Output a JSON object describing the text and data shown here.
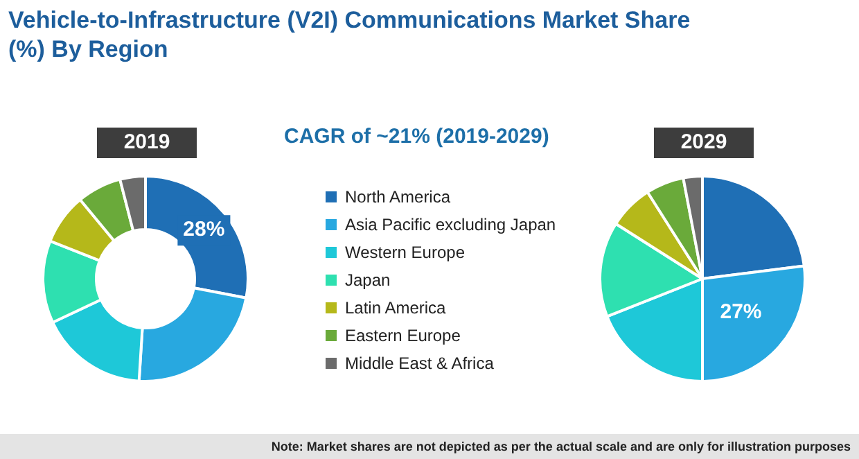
{
  "chart_data": {
    "type": "donut",
    "title": "Vehicle-to-Infrastructure (V2I) Communications Market Share (%) By Region",
    "subtitle": "CAGR of ~21% (2019-2029)",
    "annotations": [
      "Note: Market shares are not depicted as per the actual scale and are only for illustration purposes"
    ],
    "legend": "right",
    "categories": [
      "North America",
      "Asia Pacific excluding Japan",
      "Western Europe",
      "Japan",
      "Latin America",
      "Eastern Europe",
      "Middle East & Africa"
    ],
    "colors": [
      "#1f6fb5",
      "#28a8e0",
      "#1ec8d8",
      "#2ee0b0",
      "#b5b81a",
      "#6aaa3a",
      "#6b6b6b"
    ],
    "series": [
      {
        "name": "2019",
        "values": [
          28,
          23,
          17,
          13,
          8,
          7,
          4
        ],
        "value_labels": [
          "28%",
          null,
          null,
          null,
          null,
          null,
          null
        ]
      },
      {
        "name": "2029",
        "type": "pie",
        "values": [
          23,
          27,
          19,
          15,
          7,
          6,
          3
        ],
        "value_labels": [
          null,
          "27%",
          null,
          null,
          null,
          null,
          null
        ]
      }
    ]
  }
}
